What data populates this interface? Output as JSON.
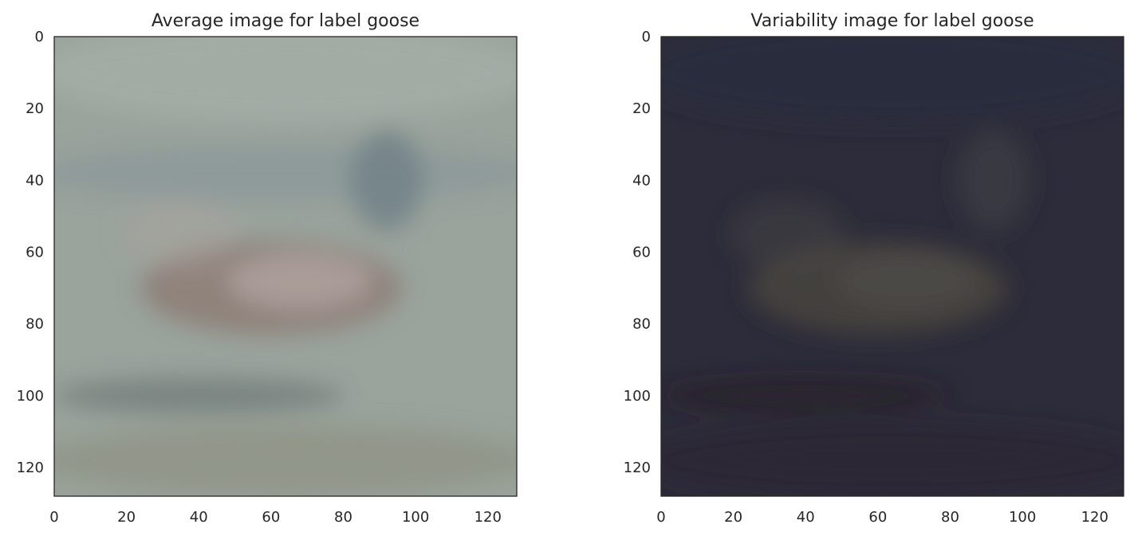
{
  "chart_data": [
    {
      "type": "heatmap",
      "title": "Average image for label goose",
      "xlim": [
        0,
        128
      ],
      "ylim": [
        128,
        0
      ],
      "x_ticks": [
        0,
        20,
        40,
        60,
        80,
        100,
        120
      ],
      "y_ticks": [
        0,
        20,
        40,
        60,
        80,
        100,
        120
      ],
      "grid": false,
      "colors": {
        "background": "#9aa39c",
        "sky": "#a3ada5",
        "water_band": "#87959a",
        "goose_body": "#8e7f78",
        "goose_highlight": "#b3a4a0",
        "neck": "#6e7f86",
        "shadow": "#66716f",
        "bottom": "#8f9386"
      }
    },
    {
      "type": "heatmap",
      "title": "Variability image for label goose",
      "xlim": [
        0,
        128
      ],
      "ylim": [
        128,
        0
      ],
      "x_ticks": [
        0,
        20,
        40,
        60,
        80,
        100,
        120
      ],
      "y_ticks": [
        0,
        20,
        40,
        60,
        80,
        100,
        120
      ],
      "grid": false,
      "colors": {
        "background": "#2d2c3a",
        "sky": "#282b3d",
        "goose_body": "#45433f",
        "goose_highlight": "#504e48",
        "neck": "#3e3f44",
        "shadow": "#241f2a",
        "bottom": "#2c2836"
      }
    }
  ]
}
